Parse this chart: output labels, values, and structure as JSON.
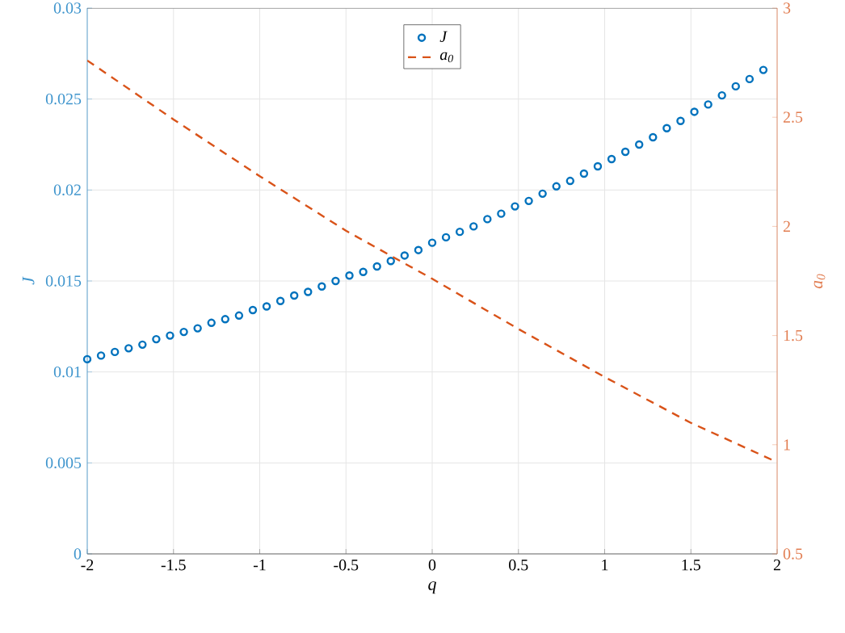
{
  "chart_data": {
    "type": "scatter",
    "xlabel": "q",
    "ylabel": "J",
    "y2label": "a$_{0}$",
    "x": [
      -2,
      -1.92,
      -1.84,
      -1.76,
      -1.68,
      -1.6,
      -1.52,
      -1.44,
      -1.36,
      -1.28,
      -1.2,
      -1.12,
      -1.04,
      -0.96,
      -0.88,
      -0.8,
      -0.72,
      -0.64,
      -0.56,
      -0.48,
      -0.4,
      -0.32,
      -0.24,
      -0.16,
      -0.08,
      0,
      0.08,
      0.16,
      0.24,
      0.32,
      0.4,
      0.48,
      0.56,
      0.64,
      0.72,
      0.8,
      0.88,
      0.96,
      1.04,
      1.12,
      1.2,
      1.28,
      1.36,
      1.44,
      1.52,
      1.6,
      1.68,
      1.76,
      1.84,
      1.92
    ],
    "series": [
      {
        "name": "J",
        "marker": "circle",
        "color": "#0072bd",
        "values": [
          0.0107,
          0.0109,
          0.0111,
          0.0113,
          0.0115,
          0.0118,
          0.012,
          0.0122,
          0.0124,
          0.0127,
          0.0129,
          0.0131,
          0.0134,
          0.0136,
          0.0139,
          0.0142,
          0.0144,
          0.0147,
          0.015,
          0.0153,
          0.0155,
          0.0158,
          0.0161,
          0.0164,
          0.0167,
          0.0171,
          0.0174,
          0.0177,
          0.018,
          0.0184,
          0.0187,
          0.0191,
          0.0194,
          0.0198,
          0.0202,
          0.0205,
          0.0209,
          0.0213,
          0.0217,
          0.0221,
          0.0225,
          0.0229,
          0.0234,
          0.0238,
          0.0243,
          0.0247,
          0.0252,
          0.0257,
          0.0261,
          0.0266
        ]
      },
      {
        "name": "a$_{0}$",
        "type": "line",
        "axis": "y2",
        "line_style": "dashed",
        "color": "#d95319",
        "x": [
          -2,
          -1.5,
          -1,
          -0.5,
          0,
          0.5,
          1,
          1.5,
          2
        ],
        "values": [
          2.76,
          2.49,
          2.23,
          1.98,
          1.76,
          1.53,
          1.31,
          1.1,
          0.92
        ]
      }
    ],
    "xlim": [
      -2,
      2
    ],
    "xticks": [
      -2,
      -1.5,
      -1,
      -0.5,
      0,
      0.5,
      1,
      1.5,
      2
    ],
    "ylim": [
      0,
      0.03
    ],
    "yticks": [
      0,
      0.005,
      0.01,
      0.015,
      0.02,
      0.025,
      0.03
    ],
    "y2lim": [
      0.5,
      3
    ],
    "y2ticks": [
      0.5,
      1,
      1.5,
      2,
      2.5,
      3
    ],
    "grid": true,
    "legend": "top"
  }
}
